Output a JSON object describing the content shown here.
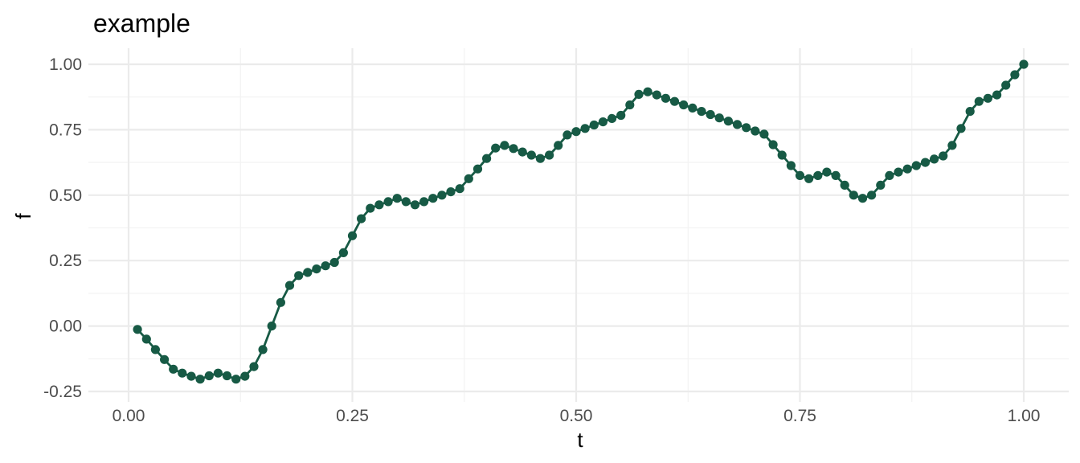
{
  "chart_data": {
    "type": "line",
    "title": "example",
    "xlabel": "t",
    "ylabel": "f",
    "xlim": [
      0.0,
      1.0
    ],
    "ylim": [
      -0.25,
      1.0
    ],
    "x_ticks": [
      "0.00",
      "0.25",
      "0.50",
      "0.75",
      "1.00"
    ],
    "y_ticks": [
      "-0.25",
      "0.00",
      "0.25",
      "0.50",
      "0.75",
      "1.00"
    ],
    "grid": true,
    "legend": "none",
    "line_color": "#175a45",
    "series": [
      {
        "x": [
          0.01,
          0.02,
          0.03,
          0.04,
          0.05,
          0.06,
          0.07,
          0.08,
          0.09,
          0.1,
          0.11,
          0.12,
          0.13,
          0.14,
          0.15,
          0.16,
          0.17,
          0.18,
          0.19,
          0.2,
          0.21,
          0.22,
          0.23,
          0.24,
          0.25,
          0.26,
          0.27,
          0.28,
          0.29,
          0.3,
          0.31,
          0.32,
          0.33,
          0.34,
          0.35,
          0.36,
          0.37,
          0.38,
          0.39,
          0.4,
          0.41,
          0.42,
          0.43,
          0.44,
          0.45,
          0.46,
          0.47,
          0.48,
          0.49,
          0.5,
          0.51,
          0.52,
          0.53,
          0.54,
          0.55,
          0.56,
          0.57,
          0.58,
          0.59,
          0.6,
          0.61,
          0.62,
          0.63,
          0.64,
          0.65,
          0.66,
          0.67,
          0.68,
          0.69,
          0.7,
          0.71,
          0.72,
          0.73,
          0.74,
          0.75,
          0.76,
          0.77,
          0.78,
          0.79,
          0.8,
          0.81,
          0.82,
          0.83,
          0.84,
          0.85,
          0.86,
          0.87,
          0.88,
          0.89,
          0.9,
          0.91,
          0.92,
          0.93,
          0.94,
          0.95,
          0.96,
          0.97,
          0.98,
          0.99,
          1.0
        ],
        "values": [
          -0.013,
          -0.05,
          -0.09,
          -0.128,
          -0.165,
          -0.18,
          -0.192,
          -0.203,
          -0.19,
          -0.18,
          -0.19,
          -0.203,
          -0.192,
          -0.155,
          -0.09,
          0.0,
          0.09,
          0.155,
          0.193,
          0.205,
          0.218,
          0.23,
          0.243,
          0.28,
          0.345,
          0.41,
          0.45,
          0.463,
          0.475,
          0.488,
          0.475,
          0.463,
          0.475,
          0.488,
          0.5,
          0.513,
          0.525,
          0.563,
          0.6,
          0.64,
          0.68,
          0.69,
          0.678,
          0.665,
          0.653,
          0.64,
          0.653,
          0.69,
          0.73,
          0.743,
          0.755,
          0.768,
          0.78,
          0.793,
          0.805,
          0.845,
          0.885,
          0.895,
          0.883,
          0.87,
          0.858,
          0.845,
          0.833,
          0.82,
          0.808,
          0.795,
          0.783,
          0.77,
          0.758,
          0.745,
          0.733,
          0.693,
          0.653,
          0.613,
          0.575,
          0.563,
          0.575,
          0.588,
          0.575,
          0.538,
          0.5,
          0.488,
          0.5,
          0.538,
          0.575,
          0.588,
          0.6,
          0.613,
          0.625,
          0.638,
          0.65,
          0.69,
          0.755,
          0.82,
          0.858,
          0.87,
          0.883,
          0.92,
          0.96,
          1.0
        ]
      }
    ]
  }
}
